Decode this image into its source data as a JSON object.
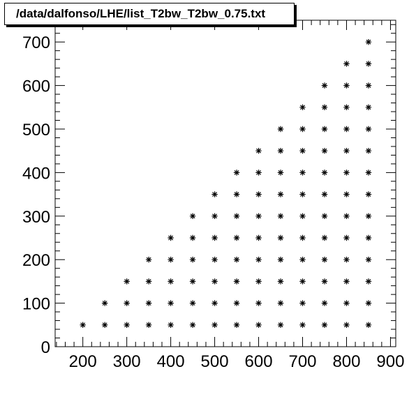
{
  "chart_data": {
    "type": "scatter",
    "title": "/data/dalfonso/LHE/list_T2bw_T2bw_0.75.txt",
    "xlabel": "",
    "ylabel": "",
    "xlim": [
      137,
      912
    ],
    "ylim": [
      0,
      750
    ],
    "xticks": [
      200,
      300,
      400,
      500,
      600,
      700,
      800,
      900
    ],
    "yticks": [
      0,
      100,
      200,
      300,
      400,
      500,
      600,
      700
    ],
    "grid": false,
    "marker": "asterisk",
    "series": [
      {
        "points": [
          [
            200,
            50
          ],
          [
            250,
            50
          ],
          [
            250,
            100
          ],
          [
            300,
            50
          ],
          [
            300,
            100
          ],
          [
            300,
            150
          ],
          [
            350,
            50
          ],
          [
            350,
            100
          ],
          [
            350,
            150
          ],
          [
            350,
            200
          ],
          [
            400,
            50
          ],
          [
            400,
            100
          ],
          [
            400,
            150
          ],
          [
            400,
            200
          ],
          [
            400,
            250
          ],
          [
            450,
            50
          ],
          [
            450,
            100
          ],
          [
            450,
            150
          ],
          [
            450,
            200
          ],
          [
            450,
            250
          ],
          [
            450,
            300
          ],
          [
            500,
            50
          ],
          [
            500,
            100
          ],
          [
            500,
            150
          ],
          [
            500,
            200
          ],
          [
            500,
            250
          ],
          [
            500,
            300
          ],
          [
            500,
            350
          ],
          [
            550,
            50
          ],
          [
            550,
            100
          ],
          [
            550,
            150
          ],
          [
            550,
            200
          ],
          [
            550,
            250
          ],
          [
            550,
            300
          ],
          [
            550,
            350
          ],
          [
            550,
            400
          ],
          [
            600,
            50
          ],
          [
            600,
            100
          ],
          [
            600,
            150
          ],
          [
            600,
            200
          ],
          [
            600,
            250
          ],
          [
            600,
            300
          ],
          [
            600,
            350
          ],
          [
            600,
            400
          ],
          [
            600,
            450
          ],
          [
            650,
            50
          ],
          [
            650,
            100
          ],
          [
            650,
            150
          ],
          [
            650,
            200
          ],
          [
            650,
            250
          ],
          [
            650,
            300
          ],
          [
            650,
            350
          ],
          [
            650,
            400
          ],
          [
            650,
            450
          ],
          [
            650,
            500
          ],
          [
            700,
            50
          ],
          [
            700,
            100
          ],
          [
            700,
            150
          ],
          [
            700,
            200
          ],
          [
            700,
            250
          ],
          [
            700,
            300
          ],
          [
            700,
            350
          ],
          [
            700,
            400
          ],
          [
            700,
            450
          ],
          [
            700,
            500
          ],
          [
            700,
            550
          ],
          [
            750,
            50
          ],
          [
            750,
            100
          ],
          [
            750,
            150
          ],
          [
            750,
            200
          ],
          [
            750,
            250
          ],
          [
            750,
            300
          ],
          [
            750,
            350
          ],
          [
            750,
            400
          ],
          [
            750,
            450
          ],
          [
            750,
            500
          ],
          [
            750,
            550
          ],
          [
            750,
            600
          ],
          [
            800,
            50
          ],
          [
            800,
            100
          ],
          [
            800,
            150
          ],
          [
            800,
            200
          ],
          [
            800,
            250
          ],
          [
            800,
            300
          ],
          [
            800,
            350
          ],
          [
            800,
            400
          ],
          [
            800,
            450
          ],
          [
            800,
            500
          ],
          [
            800,
            550
          ],
          [
            800,
            600
          ],
          [
            800,
            650
          ],
          [
            850,
            50
          ],
          [
            850,
            100
          ],
          [
            850,
            150
          ],
          [
            850,
            200
          ],
          [
            850,
            250
          ],
          [
            850,
            300
          ],
          [
            850,
            350
          ],
          [
            850,
            400
          ],
          [
            850,
            450
          ],
          [
            850,
            500
          ],
          [
            850,
            550
          ],
          [
            850,
            600
          ],
          [
            850,
            650
          ],
          [
            850,
            700
          ]
        ]
      }
    ]
  }
}
